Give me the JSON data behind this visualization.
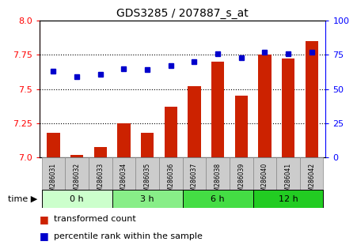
{
  "title": "GDS3285 / 207887_s_at",
  "samples": [
    "GSM286031",
    "GSM286032",
    "GSM286033",
    "GSM286034",
    "GSM286035",
    "GSM286036",
    "GSM286037",
    "GSM286038",
    "GSM286039",
    "GSM286040",
    "GSM286041",
    "GSM286042"
  ],
  "bar_values": [
    7.18,
    7.02,
    7.08,
    7.25,
    7.18,
    7.37,
    7.52,
    7.7,
    7.45,
    7.75,
    7.72,
    7.85
  ],
  "percentile_values": [
    63,
    59,
    61,
    65,
    64,
    67,
    70,
    76,
    73,
    77,
    76,
    77
  ],
  "bar_color": "#cc2200",
  "percentile_color": "#0000cc",
  "ylim_left": [
    7.0,
    8.0
  ],
  "ylim_right": [
    0,
    100
  ],
  "yticks_left": [
    7.0,
    7.25,
    7.5,
    7.75,
    8.0
  ],
  "yticks_right": [
    0,
    25,
    50,
    75,
    100
  ],
  "time_groups": [
    {
      "label": "0 h",
      "start": 0,
      "end": 2,
      "color": "#ccffcc"
    },
    {
      "label": "3 h",
      "start": 3,
      "end": 5,
      "color": "#88ee88"
    },
    {
      "label": "6 h",
      "start": 6,
      "end": 8,
      "color": "#44dd44"
    },
    {
      "label": "12 h",
      "start": 9,
      "end": 11,
      "color": "#22cc22"
    }
  ],
  "bar_width": 0.55,
  "background_color": "#ffffff",
  "label_bg_color": "#cccccc",
  "label_border_color": "#888888"
}
